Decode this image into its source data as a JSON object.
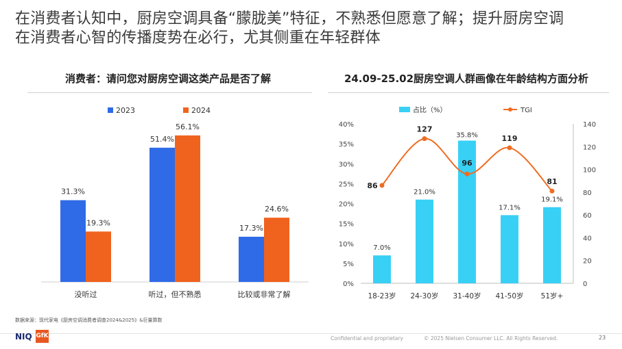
{
  "headline_line1": "在消费者认知中，厨房空调具备“朦胧美”特征，不熟悉但愿意了解；提升厨房空调",
  "headline_line2": "在消费者心智的传播度势在必行，尤其侧重在年轻群体",
  "left_panel_title": "消费者：请问您对厨房空调这类产品是否了解",
  "right_panel_title": "24.09-25.02厨房空调人群画像在年龄结构方面分析",
  "source": "数据来源：现代家电《厨房空调消费者调查2024&2025》&巨量算数",
  "logo_text": "NIQ",
  "gfk_text": "GfK",
  "confidential": "Confidential and proprietary",
  "copyright": "© 2025 Nielsen Consumer LLC. All Rights Reserved.",
  "page_number": "23",
  "colors": {
    "blue": "#2f6be6",
    "orange": "#f0631e",
    "cyan": "#39d0f5",
    "line": "#ef6c22"
  },
  "chart_data": [
    {
      "type": "bar",
      "categories": [
        "没听过",
        "听过，但不熟悉",
        "比较或非常了解"
      ],
      "series": [
        {
          "name": "2023",
          "values": [
            31.3,
            51.4,
            17.3
          ],
          "labels": [
            "31.3%",
            "51.4%",
            "17.3%"
          ]
        },
        {
          "name": "2024",
          "values": [
            19.3,
            56.1,
            24.6
          ],
          "labels": [
            "19.3%",
            "56.1%",
            "24.6%"
          ]
        }
      ],
      "ylim": [
        0,
        60
      ],
      "legend": "top-left"
    },
    {
      "type": "bar",
      "categories": [
        "18-23岁",
        "24-30岁",
        "31-40岁",
        "41-50岁",
        "51岁+"
      ],
      "series": [
        {
          "name": "占比（%）",
          "values": [
            7.0,
            21.0,
            35.8,
            17.1,
            19.1
          ],
          "labels": [
            "7.0%",
            "21.0%",
            "35.8%",
            "17.1%",
            "19.1%"
          ]
        },
        {
          "name": "TGI",
          "type": "line",
          "axis": "right",
          "values": [
            86,
            127,
            96,
            119,
            81
          ],
          "labels": [
            "86",
            "127",
            "96",
            "119",
            "81"
          ]
        }
      ],
      "left_axis": {
        "ticks": [
          "0%",
          "5%",
          "10%",
          "15%",
          "20%",
          "25%",
          "30%",
          "35%",
          "40%"
        ],
        "ylim": [
          0,
          40
        ]
      },
      "right_axis": {
        "ticks": [
          "0",
          "20",
          "40",
          "60",
          "80",
          "100",
          "120",
          "140"
        ],
        "ylim": [
          0,
          140
        ]
      },
      "legend": "top"
    }
  ]
}
